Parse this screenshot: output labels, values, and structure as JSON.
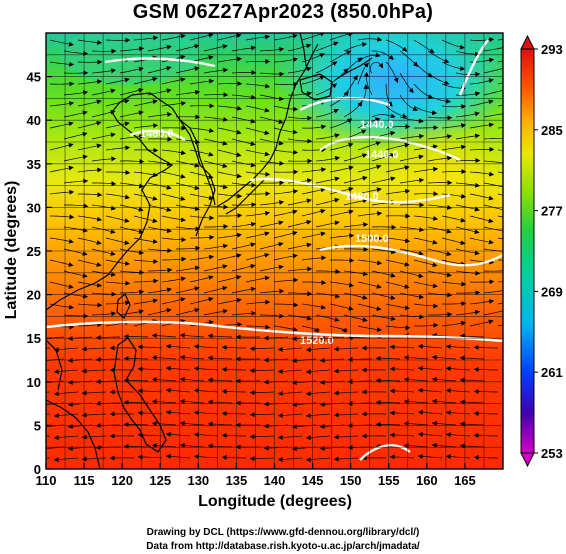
{
  "title": "GSM 06Z27Apr2023 (850.0hPa)",
  "xaxis": {
    "label": "Longitude (degrees)",
    "ticks": [
      "110",
      "115",
      "120",
      "125",
      "130",
      "135",
      "140",
      "145",
      "150",
      "155",
      "160",
      "165"
    ],
    "range": [
      110,
      170
    ]
  },
  "yaxis": {
    "label": "Latitude  (degrees)",
    "ticks": [
      "0",
      "5",
      "10",
      "15",
      "20",
      "25",
      "30",
      "35",
      "40",
      "45"
    ],
    "range": [
      0,
      50
    ]
  },
  "colorbar": {
    "ticks": [
      "293",
      "285",
      "277",
      "269",
      "261",
      "253"
    ],
    "range": [
      253,
      293
    ],
    "colors": [
      "#d400c8",
      "#4000b0",
      "#0040ff",
      "#00c8e0",
      "#00d070",
      "#50e000",
      "#d8f000",
      "#ffc800",
      "#ff7000",
      "#ff2000",
      "#e01010"
    ]
  },
  "contour_labels": [
    "1520.0",
    "1500.0",
    "1480.0",
    "1460.0",
    "1440.0",
    "1440.0"
  ],
  "credits": {
    "line1": "Drawing by DCL (https://www.gfd-dennou.org/library/dcl/)",
    "line2": "Data from http://database.rish.kyoto-u.ac.jp/arch/jmadata/"
  }
}
